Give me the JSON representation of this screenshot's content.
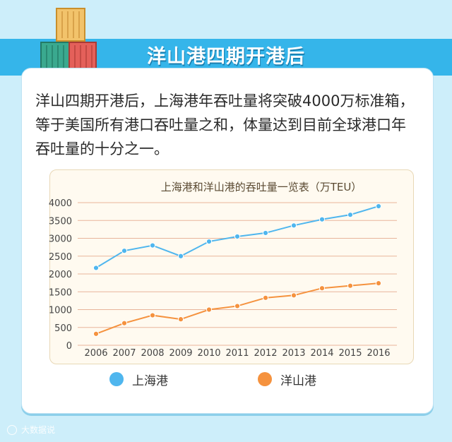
{
  "banner": {
    "title": "洋山港四期开港后"
  },
  "intro": {
    "text": "洋山四期开港后，上海港年吞吐量将突破4000万标准箱，等于美国所有港口吞吐量之和，体量达到目前全球港口年吞吐量的十分之一。"
  },
  "colors": {
    "banner": "#35b5ea",
    "shanghai": "#4fb6ee",
    "yangshan": "#f5923e"
  },
  "chart_data": {
    "type": "line",
    "title": "上海港和洋山港的吞吐量一览表（万TEU）",
    "x": [
      "2006",
      "2007",
      "2008",
      "2009",
      "2010",
      "2011",
      "2012",
      "2013",
      "2014",
      "2015",
      "2016"
    ],
    "series": [
      {
        "name": "上海港",
        "color": "#4fb6ee",
        "values": [
          2170,
          2650,
          2800,
          2500,
          2910,
          3050,
          3150,
          3360,
          3530,
          3660,
          3900
        ]
      },
      {
        "name": "洋山港",
        "color": "#f5923e",
        "values": [
          320,
          620,
          840,
          730,
          1000,
          1100,
          1330,
          1400,
          1600,
          1670,
          1740
        ]
      }
    ],
    "yticks": [
      0,
      500,
      1000,
      1500,
      2000,
      2500,
      3000,
      3500,
      4000
    ],
    "ylim": [
      0,
      4000
    ],
    "grid": true,
    "legend": "bottom"
  },
  "legend": [
    {
      "label": "上海港",
      "color": "#4fb6ee"
    },
    {
      "label": "洋山港",
      "color": "#f5923e"
    }
  ],
  "watermark": {
    "text": "大数据说"
  }
}
